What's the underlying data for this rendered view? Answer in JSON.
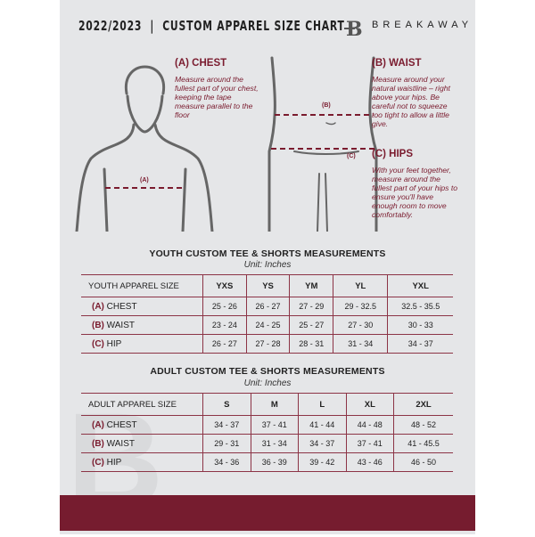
{
  "header": {
    "title": "2022/2023  |  CUSTOM APPAREL SIZE CHART",
    "brand": "BREAKAWAY"
  },
  "guide": {
    "chest": {
      "title": "(A) CHEST",
      "text": "Measure around the fullest part of your chest, keeping the tape measure parallel to the floor",
      "marker": "(A)"
    },
    "waist": {
      "title": "(B) WAIST",
      "text": "Measure around your natural waistline – right above your hips. Be careful not to squeeze too tight to allow a little give.",
      "marker": "(B)"
    },
    "hips": {
      "title": "(C) HIPS",
      "text": "With your feet together, measure around the fullest part of your hips to ensure you'll have enough room to move comfortably.",
      "marker": "(C)"
    }
  },
  "youth": {
    "title": "YOUTH CUSTOM TEE & SHORTS MEASUREMENTS",
    "unit": "Unit: Inches",
    "header": "YOUTH APPAREL SIZE",
    "sizes": [
      "YXS",
      "YS",
      "YM",
      "YL",
      "YXL"
    ],
    "rows": [
      {
        "letter": "(A)",
        "name": "CHEST",
        "values": [
          "25 - 26",
          "26 - 27",
          "27 - 29",
          "29 - 32.5",
          "32.5 - 35.5"
        ]
      },
      {
        "letter": "(B)",
        "name": "WAIST",
        "values": [
          "23 - 24",
          "24 - 25",
          "25 - 27",
          "27 - 30",
          "30 - 33"
        ]
      },
      {
        "letter": "(C)",
        "name": "HIP",
        "values": [
          "26 - 27",
          "27 - 28",
          "28 - 31",
          "31 - 34",
          "34 - 37"
        ]
      }
    ]
  },
  "adult": {
    "title": "ADULT CUSTOM TEE & SHORTS MEASUREMENTS",
    "unit": "Unit: Inches",
    "header": "ADULT APPAREL SIZE",
    "sizes": [
      "S",
      "M",
      "L",
      "XL",
      "2XL"
    ],
    "rows": [
      {
        "letter": "(A)",
        "name": "CHEST",
        "values": [
          "34 - 37",
          "37 - 41",
          "41 - 44",
          "44 - 48",
          "48 - 52"
        ]
      },
      {
        "letter": "(B)",
        "name": "WAIST",
        "values": [
          "29 - 31",
          "31 - 34",
          "34 - 37",
          "37 - 41",
          "41 - 45.5"
        ]
      },
      {
        "letter": "(C)",
        "name": "HIP",
        "values": [
          "34 - 36",
          "36 - 39",
          "39 - 42",
          "43 - 46",
          "46 - 50"
        ]
      }
    ]
  },
  "colors": {
    "accent": "#761c2f",
    "background": "#e5e6e8"
  }
}
